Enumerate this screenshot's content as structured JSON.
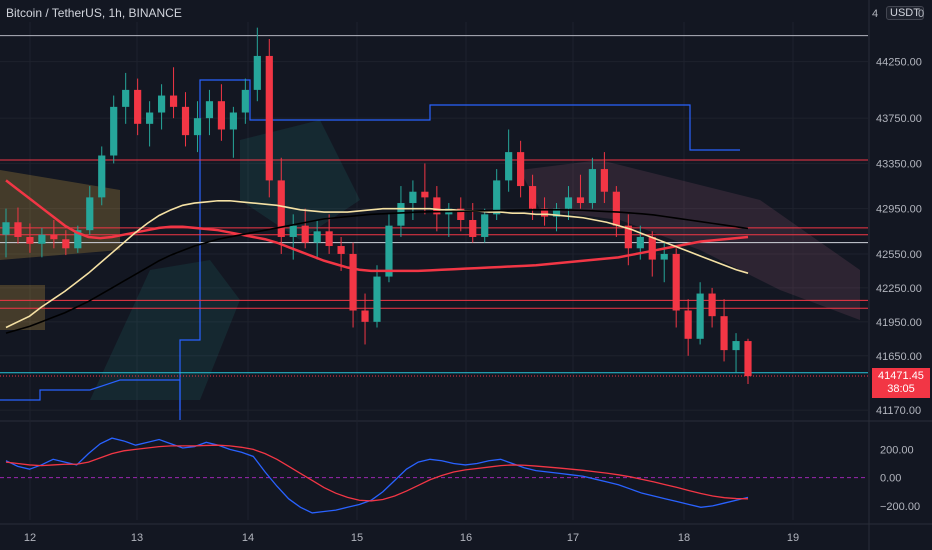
{
  "header": {
    "symbol_line": "Bitcoin / TetherUS, 1h, BINANCE",
    "currency": "USDT",
    "corner_left": "4",
    "corner_right": "0"
  },
  "colors": {
    "background": "#131722",
    "bull": "#26a69a",
    "bear": "#f23645",
    "grid": "#2a2e39",
    "axis_text": "#b2b5be",
    "ema_red": "#f23645",
    "ma_black": "#000000",
    "ma_yellow": "#f5e1a4",
    "macd_blue": "#2962ff",
    "signal_red": "#f23645"
  },
  "last_price": {
    "value": "41471.45",
    "countdown": "38:05"
  },
  "chart_data": [
    {
      "type": "candlestick",
      "title": "Bitcoin / TetherUS, 1h, BINANCE",
      "x_tick_labels": [
        "12",
        "13",
        "14",
        "15",
        "16",
        "17",
        "18",
        "19"
      ],
      "y_tick_labels": [
        "44250.00",
        "43750.00",
        "43350.00",
        "42950.00",
        "42550.00",
        "42250.00",
        "41950.00",
        "41650.00",
        "41170.00"
      ],
      "ylim": [
        41100,
        44600
      ],
      "grid": true,
      "horizontal_levels": [
        {
          "price": 44480,
          "color": "#b2b5be"
        },
        {
          "price": 43380,
          "color": "#f23645"
        },
        {
          "price": 42780,
          "color": "#f23645"
        },
        {
          "price": 42720,
          "color": "#f23645"
        },
        {
          "price": 42650,
          "color": "#d1d4dc"
        },
        {
          "price": 42140,
          "color": "#f23645"
        },
        {
          "price": 42070,
          "color": "#f23645"
        },
        {
          "price": 41500,
          "color": "#26c6da"
        }
      ],
      "candles": [
        {
          "o": 42720,
          "h": 42950,
          "l": 42520,
          "c": 42830
        },
        {
          "o": 42830,
          "h": 42960,
          "l": 42640,
          "c": 42700
        },
        {
          "o": 42700,
          "h": 42820,
          "l": 42560,
          "c": 42640
        },
        {
          "o": 42640,
          "h": 42780,
          "l": 42520,
          "c": 42720
        },
        {
          "o": 42720,
          "h": 42850,
          "l": 42600,
          "c": 42680
        },
        {
          "o": 42680,
          "h": 42760,
          "l": 42540,
          "c": 42600
        },
        {
          "o": 42600,
          "h": 42800,
          "l": 42560,
          "c": 42760
        },
        {
          "o": 42760,
          "h": 43150,
          "l": 42720,
          "c": 43050
        },
        {
          "o": 43050,
          "h": 43500,
          "l": 42980,
          "c": 43420
        },
        {
          "o": 43420,
          "h": 43950,
          "l": 43350,
          "c": 43850
        },
        {
          "o": 43850,
          "h": 44150,
          "l": 43700,
          "c": 44000
        },
        {
          "o": 44000,
          "h": 44100,
          "l": 43600,
          "c": 43700
        },
        {
          "o": 43700,
          "h": 43900,
          "l": 43500,
          "c": 43800
        },
        {
          "o": 43800,
          "h": 44050,
          "l": 43650,
          "c": 43950
        },
        {
          "o": 43950,
          "h": 44200,
          "l": 43750,
          "c": 43850
        },
        {
          "o": 43850,
          "h": 43980,
          "l": 43500,
          "c": 43600
        },
        {
          "o": 43600,
          "h": 43900,
          "l": 43450,
          "c": 43750
        },
        {
          "o": 43750,
          "h": 44000,
          "l": 43600,
          "c": 43900
        },
        {
          "o": 43900,
          "h": 44050,
          "l": 43550,
          "c": 43650
        },
        {
          "o": 43650,
          "h": 43850,
          "l": 43400,
          "c": 43800
        },
        {
          "o": 43800,
          "h": 44100,
          "l": 43700,
          "c": 44000
        },
        {
          "o": 44000,
          "h": 44550,
          "l": 43900,
          "c": 44300
        },
        {
          "o": 44300,
          "h": 44450,
          "l": 43050,
          "c": 43200
        },
        {
          "o": 43200,
          "h": 43400,
          "l": 42550,
          "c": 42700
        },
        {
          "o": 42700,
          "h": 42900,
          "l": 42500,
          "c": 42800
        },
        {
          "o": 42800,
          "h": 42950,
          "l": 42600,
          "c": 42650
        },
        {
          "o": 42650,
          "h": 42850,
          "l": 42500,
          "c": 42750
        },
        {
          "o": 42750,
          "h": 42900,
          "l": 42550,
          "c": 42620
        },
        {
          "o": 42620,
          "h": 42700,
          "l": 42400,
          "c": 42550
        },
        {
          "o": 42550,
          "h": 42650,
          "l": 41900,
          "c": 42050
        },
        {
          "o": 42050,
          "h": 42200,
          "l": 41750,
          "c": 41950
        },
        {
          "o": 41950,
          "h": 42450,
          "l": 41900,
          "c": 42350
        },
        {
          "o": 42350,
          "h": 42900,
          "l": 42300,
          "c": 42800
        },
        {
          "o": 42800,
          "h": 43150,
          "l": 42700,
          "c": 43000
        },
        {
          "o": 43000,
          "h": 43200,
          "l": 42850,
          "c": 43100
        },
        {
          "o": 43100,
          "h": 43350,
          "l": 42900,
          "c": 43050
        },
        {
          "o": 43050,
          "h": 43150,
          "l": 42750,
          "c": 42900
        },
        {
          "o": 42900,
          "h": 43000,
          "l": 42700,
          "c": 42950
        },
        {
          "o": 42950,
          "h": 43050,
          "l": 42750,
          "c": 42850
        },
        {
          "o": 42850,
          "h": 43000,
          "l": 42650,
          "c": 42700
        },
        {
          "o": 42700,
          "h": 42950,
          "l": 42650,
          "c": 42900
        },
        {
          "o": 42900,
          "h": 43300,
          "l": 42850,
          "c": 43200
        },
        {
          "o": 43200,
          "h": 43650,
          "l": 43100,
          "c": 43450
        },
        {
          "o": 43450,
          "h": 43550,
          "l": 43050,
          "c": 43150
        },
        {
          "o": 43150,
          "h": 43250,
          "l": 42850,
          "c": 42950
        },
        {
          "o": 42950,
          "h": 43050,
          "l": 42800,
          "c": 42880
        },
        {
          "o": 42880,
          "h": 43000,
          "l": 42750,
          "c": 42950
        },
        {
          "o": 42950,
          "h": 43150,
          "l": 42850,
          "c": 43050
        },
        {
          "o": 43050,
          "h": 43250,
          "l": 42950,
          "c": 43000
        },
        {
          "o": 43000,
          "h": 43400,
          "l": 42950,
          "c": 43300
        },
        {
          "o": 43300,
          "h": 43450,
          "l": 43000,
          "c": 43100
        },
        {
          "o": 43100,
          "h": 43150,
          "l": 42700,
          "c": 42800
        },
        {
          "o": 42800,
          "h": 42900,
          "l": 42450,
          "c": 42600
        },
        {
          "o": 42600,
          "h": 42800,
          "l": 42500,
          "c": 42700
        },
        {
          "o": 42700,
          "h": 42750,
          "l": 42350,
          "c": 42500
        },
        {
          "o": 42500,
          "h": 42650,
          "l": 42300,
          "c": 42550
        },
        {
          "o": 42550,
          "h": 42600,
          "l": 41900,
          "c": 42050
        },
        {
          "o": 42050,
          "h": 42150,
          "l": 41650,
          "c": 41800
        },
        {
          "o": 41800,
          "h": 42300,
          "l": 41750,
          "c": 42200
        },
        {
          "o": 42200,
          "h": 42250,
          "l": 41900,
          "c": 42000
        },
        {
          "o": 42000,
          "h": 42150,
          "l": 41600,
          "c": 41700
        },
        {
          "o": 41700,
          "h": 41850,
          "l": 41500,
          "c": 41780
        },
        {
          "o": 41780,
          "h": 41800,
          "l": 41400,
          "c": 41470
        }
      ],
      "indicator_lines": [
        {
          "name_visible": false,
          "color": "#f23645",
          "values": [
            43200,
            43120,
            43040,
            42960,
            42880,
            42800,
            42740,
            42700,
            42690,
            42700,
            42720,
            42740,
            42760,
            42780,
            42790,
            42790,
            42780,
            42770,
            42760,
            42740,
            42720,
            42700,
            42680,
            42650,
            42610,
            42570,
            42530,
            42490,
            42460,
            42430,
            42410,
            42400,
            42400,
            42400,
            42400,
            42400,
            42405,
            42410,
            42415,
            42420,
            42425,
            42430,
            42435,
            42440,
            42445,
            42450,
            42460,
            42470,
            42480,
            42490,
            42500,
            42510,
            42520,
            42540,
            42560,
            42580,
            42600,
            42620,
            42640,
            42660,
            42670,
            42680,
            42690,
            42700
          ]
        },
        {
          "name_visible": false,
          "color": "#f5e1a4",
          "values": [
            41900,
            41950,
            42000,
            42080,
            42150,
            42220,
            42300,
            42380,
            42470,
            42560,
            42650,
            42740,
            42820,
            42890,
            42940,
            42980,
            43000,
            43010,
            43020,
            43020,
            43010,
            43000,
            42990,
            42980,
            42960,
            42940,
            42930,
            42920,
            42920,
            42920,
            42930,
            42940,
            42950,
            42950,
            42950,
            42950,
            42950,
            42940,
            42940,
            42930,
            42930,
            42920,
            42920,
            42910,
            42910,
            42900,
            42900,
            42890,
            42880,
            42870,
            42850,
            42830,
            42800,
            42770,
            42730,
            42690,
            42650,
            42610,
            42570,
            42530,
            42490,
            42450,
            42410,
            42380
          ]
        },
        {
          "name_visible": false,
          "color": "#000000",
          "values": [
            41850,
            41880,
            41910,
            41950,
            41990,
            42030,
            42080,
            42130,
            42190,
            42250,
            42310,
            42370,
            42430,
            42490,
            42540,
            42580,
            42620,
            42650,
            42680,
            42700,
            42720,
            42740,
            42760,
            42780,
            42800,
            42820,
            42840,
            42860,
            42870,
            42880,
            42890,
            42900,
            42905,
            42910,
            42915,
            42920,
            42922,
            42924,
            42926,
            42928,
            42930,
            42932,
            42934,
            42936,
            42938,
            42940,
            42940,
            42940,
            42938,
            42935,
            42930,
            42925,
            42920,
            42912,
            42905,
            42895,
            42880,
            42865,
            42850,
            42835,
            42820,
            42805,
            42790,
            42775
          ]
        }
      ]
    },
    {
      "type": "line",
      "title": "",
      "y_tick_labels": [
        "200.00",
        "0.00",
        "−200.00"
      ],
      "ylim": [
        -300,
        380
      ],
      "zero_line": true,
      "series": [
        {
          "color": "#2962ff",
          "values": [
            120,
            80,
            60,
            90,
            130,
            110,
            90,
            170,
            240,
            280,
            260,
            230,
            250,
            270,
            240,
            210,
            220,
            250,
            230,
            200,
            180,
            150,
            40,
            -60,
            -150,
            -210,
            -250,
            -240,
            -230,
            -210,
            -190,
            -160,
            -100,
            -20,
            60,
            110,
            130,
            120,
            100,
            90,
            100,
            120,
            130,
            100,
            70,
            50,
            40,
            30,
            20,
            10,
            -10,
            -30,
            -50,
            -80,
            -110,
            -130,
            -150,
            -170,
            -190,
            -210,
            -200,
            -180,
            -160,
            -140
          ]
        },
        {
          "color": "#f23645",
          "values": [
            110,
            100,
            90,
            85,
            90,
            95,
            95,
            110,
            140,
            170,
            190,
            200,
            210,
            220,
            225,
            225,
            225,
            228,
            230,
            225,
            215,
            200,
            170,
            130,
            80,
            30,
            -20,
            -70,
            -110,
            -140,
            -160,
            -165,
            -155,
            -130,
            -95,
            -55,
            -15,
            15,
            40,
            55,
            65,
            75,
            85,
            90,
            88,
            82,
            75,
            68,
            60,
            52,
            42,
            32,
            20,
            6,
            -12,
            -30,
            -50,
            -70,
            -92,
            -112,
            -130,
            -142,
            -148,
            -150
          ]
        }
      ]
    }
  ]
}
